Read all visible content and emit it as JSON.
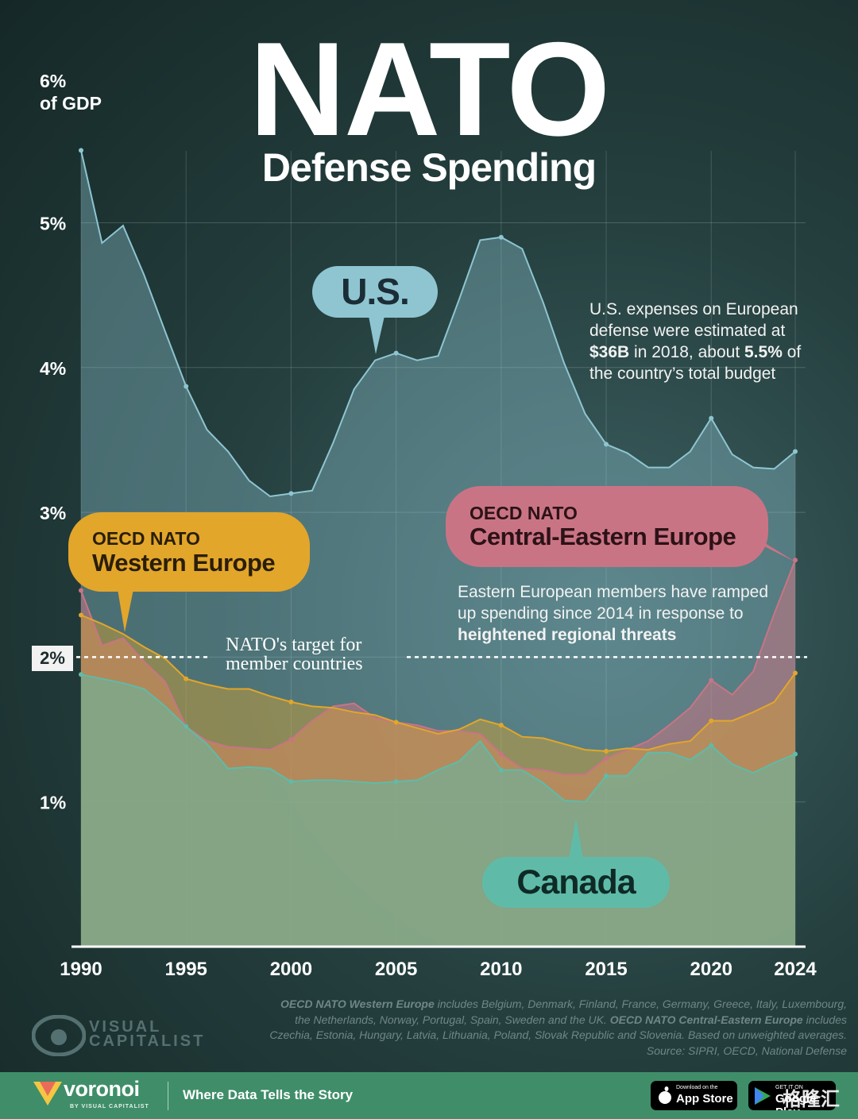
{
  "title": "NATO",
  "subtitle": "Defense Spending",
  "y_unit_label": [
    "6%",
    "of GDP"
  ],
  "chart_data": {
    "type": "area",
    "x": [
      1990,
      1991,
      1992,
      1993,
      1994,
      1995,
      1996,
      1997,
      1998,
      1999,
      2000,
      2001,
      2002,
      2003,
      2004,
      2005,
      2006,
      2007,
      2008,
      2009,
      2010,
      2011,
      2012,
      2013,
      2014,
      2015,
      2016,
      2017,
      2018,
      2019,
      2020,
      2021,
      2022,
      2023,
      2024
    ],
    "x_ticks": [
      "1990",
      "1995",
      "2000",
      "2005",
      "2010",
      "2015",
      "2020",
      "2024"
    ],
    "y_ticks": [
      "1%",
      "2%",
      "3%",
      "4%",
      "5%"
    ],
    "ylim": [
      0,
      6
    ],
    "xlim": [
      1990,
      2024
    ],
    "series": [
      {
        "name": "U.S.",
        "color": "#8ec5d1",
        "values": [
          5.5,
          4.86,
          4.98,
          4.64,
          4.25,
          3.87,
          3.57,
          3.42,
          3.22,
          3.11,
          3.13,
          3.15,
          3.48,
          3.85,
          4.05,
          4.1,
          4.05,
          4.08,
          4.47,
          4.88,
          4.9,
          4.82,
          4.45,
          4.03,
          3.68,
          3.47,
          3.41,
          3.31,
          3.31,
          3.42,
          3.65,
          3.4,
          3.31,
          3.3,
          3.42
        ]
      },
      {
        "name": "OECD NATO Central-Eastern Europe",
        "color": "#c97484",
        "values": [
          2.46,
          2.08,
          2.13,
          1.97,
          1.83,
          1.52,
          1.42,
          1.38,
          1.37,
          1.36,
          1.43,
          1.56,
          1.66,
          1.68,
          1.58,
          1.55,
          1.53,
          1.49,
          1.49,
          1.47,
          1.33,
          1.23,
          1.22,
          1.19,
          1.19,
          1.3,
          1.36,
          1.42,
          1.53,
          1.65,
          1.84,
          1.74,
          1.9,
          2.3,
          2.67
        ]
      },
      {
        "name": "OECD NATO Western Europe",
        "color": "#e2a62b",
        "values": [
          2.29,
          2.23,
          2.16,
          2.07,
          1.99,
          1.85,
          1.81,
          1.78,
          1.78,
          1.73,
          1.69,
          1.66,
          1.65,
          1.62,
          1.6,
          1.55,
          1.51,
          1.47,
          1.5,
          1.57,
          1.53,
          1.45,
          1.44,
          1.4,
          1.36,
          1.35,
          1.37,
          1.36,
          1.4,
          1.42,
          1.56,
          1.56,
          1.62,
          1.69,
          1.89
        ]
      },
      {
        "name": "Canada",
        "color": "#5fbba8",
        "values": [
          1.88,
          1.85,
          1.82,
          1.78,
          1.66,
          1.52,
          1.4,
          1.23,
          1.24,
          1.23,
          1.14,
          1.15,
          1.15,
          1.14,
          1.13,
          1.14,
          1.15,
          1.22,
          1.28,
          1.42,
          1.22,
          1.22,
          1.13,
          1.01,
          1.0,
          1.18,
          1.18,
          1.34,
          1.34,
          1.29,
          1.39,
          1.26,
          1.2,
          1.27,
          1.33
        ]
      }
    ],
    "reference_line": {
      "value": 2,
      "label": "2%",
      "annotation": [
        "NATO's target for",
        "member countries"
      ]
    }
  },
  "labels": {
    "us": "U.S.",
    "we_small": "OECD NATO",
    "we_big": "Western Europe",
    "cee_small": "OECD NATO",
    "cee_big": "Central-Eastern Europe",
    "canada": "Canada"
  },
  "notes": {
    "us": {
      "l1": "U.S. expenses on European",
      "l2": "defense were estimated at",
      "l3_bold1": "$36B",
      "l3_mid": " in 2018, about ",
      "l3_bold2": "5.5%",
      "l3_end": " of",
      "l4": "the country’s total budget"
    },
    "cee": {
      "l1": "Eastern European members have ramped",
      "l2": "up spending since 2014 in response to",
      "l3_bold": "heightened regional threats"
    }
  },
  "footnote": {
    "b1": "OECD NATO Western Europe",
    "t1": " includes Belgium, Denmark, Finland, France, Germany, Greece, Italy, Luxembourg,",
    "t2": "the Netherlands, Norway, Portugal, Spain, Sweden and the UK. ",
    "b2": "OECD NATO Central-Eastern Europe",
    "t3": " includes",
    "t4": "Czechia, Estonia, Hungary, Latvia, Lithuania, Poland, Slovak Republic and Slovenia. Based on unweighted averages.",
    "source": "Source: SIPRI, OECD, National Defense"
  },
  "brand": {
    "watermark_line1": "VISUAL",
    "watermark_line2": "CAPITALIST"
  },
  "footer": {
    "logo": "voronoi",
    "logo_sub": "BY VISUAL CAPITALIST",
    "tagline": "Where Data Tells the Story",
    "app_store_small": "Download on the",
    "app_store": "App Store",
    "google_play_small": "GET IT ON",
    "google_play": "Google Play",
    "overlay_text": "格隆汇"
  },
  "colors": {
    "us": "#8ec5d1",
    "cee": "#c97484",
    "we": "#e2a62b",
    "canada": "#5fbba8",
    "footer_green": "#3f8e69",
    "background": "#1e3534"
  }
}
